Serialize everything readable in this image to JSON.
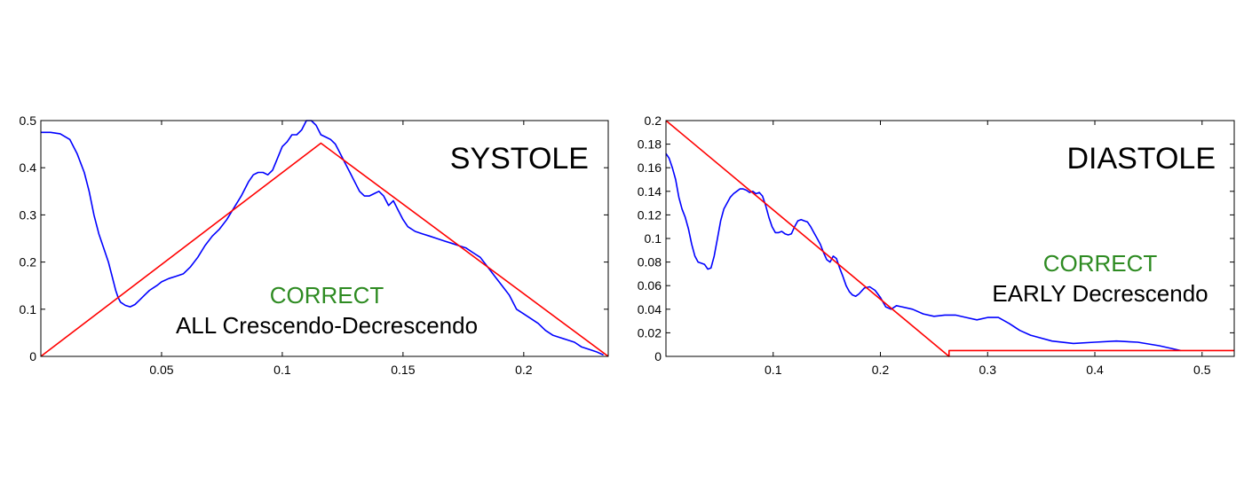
{
  "chart_data": [
    {
      "type": "line",
      "panel": "systole",
      "title": "SYSTOLE",
      "status": "CORRECT",
      "classification": "ALL Crescendo-Decrescendo",
      "xlim": [
        0,
        0.235
      ],
      "ylim": [
        0,
        0.5
      ],
      "xticks": [
        {
          "v": 0.05,
          "label": "0.05"
        },
        {
          "v": 0.1,
          "label": "0.1"
        },
        {
          "v": 0.15,
          "label": "0.15"
        },
        {
          "v": 0.2,
          "label": "0.2"
        }
      ],
      "yticks": [
        {
          "v": 0,
          "label": "0"
        },
        {
          "v": 0.1,
          "label": "0.1"
        },
        {
          "v": 0.2,
          "label": "0.2"
        },
        {
          "v": 0.3,
          "label": "0.3"
        },
        {
          "v": 0.4,
          "label": "0.4"
        },
        {
          "v": 0.5,
          "label": "0.5"
        }
      ],
      "colors": {
        "signal": "#0000ff",
        "model": "#ff0000",
        "status": "#2e8b22"
      },
      "series": [
        {
          "key": "signal",
          "x": [
            0,
            0.004,
            0.008,
            0.012,
            0.015,
            0.018,
            0.02,
            0.022,
            0.024,
            0.026,
            0.028,
            0.03,
            0.031,
            0.032,
            0.033,
            0.035,
            0.037,
            0.039,
            0.041,
            0.043,
            0.045,
            0.048,
            0.05,
            0.053,
            0.056,
            0.059,
            0.062,
            0.065,
            0.068,
            0.071,
            0.074,
            0.077,
            0.08,
            0.083,
            0.086,
            0.088,
            0.09,
            0.092,
            0.094,
            0.096,
            0.098,
            0.1,
            0.102,
            0.104,
            0.106,
            0.108,
            0.11,
            0.112,
            0.114,
            0.116,
            0.118,
            0.12,
            0.122,
            0.124,
            0.126,
            0.128,
            0.13,
            0.132,
            0.134,
            0.136,
            0.138,
            0.14,
            0.142,
            0.144,
            0.146,
            0.148,
            0.15,
            0.152,
            0.155,
            0.158,
            0.161,
            0.164,
            0.167,
            0.17,
            0.173,
            0.176,
            0.179,
            0.182,
            0.185,
            0.188,
            0.191,
            0.194,
            0.197,
            0.2,
            0.203,
            0.206,
            0.209,
            0.212,
            0.215,
            0.218,
            0.221,
            0.224,
            0.227,
            0.23,
            0.233
          ],
          "y": [
            0.475,
            0.475,
            0.472,
            0.46,
            0.43,
            0.39,
            0.35,
            0.3,
            0.26,
            0.23,
            0.2,
            0.16,
            0.14,
            0.125,
            0.115,
            0.108,
            0.105,
            0.11,
            0.12,
            0.13,
            0.14,
            0.15,
            0.158,
            0.165,
            0.17,
            0.175,
            0.19,
            0.21,
            0.235,
            0.255,
            0.27,
            0.29,
            0.315,
            0.34,
            0.37,
            0.385,
            0.39,
            0.39,
            0.385,
            0.395,
            0.42,
            0.445,
            0.455,
            0.47,
            0.47,
            0.48,
            0.5,
            0.5,
            0.49,
            0.47,
            0.465,
            0.46,
            0.45,
            0.43,
            0.41,
            0.39,
            0.37,
            0.35,
            0.34,
            0.34,
            0.345,
            0.35,
            0.34,
            0.32,
            0.33,
            0.31,
            0.29,
            0.275,
            0.265,
            0.26,
            0.255,
            0.25,
            0.245,
            0.24,
            0.235,
            0.23,
            0.22,
            0.21,
            0.19,
            0.17,
            0.15,
            0.13,
            0.1,
            0.09,
            0.08,
            0.07,
            0.055,
            0.045,
            0.04,
            0.035,
            0.03,
            0.02,
            0.015,
            0.01,
            0.003
          ]
        },
        {
          "key": "model",
          "x": [
            0,
            0.116,
            0.235
          ],
          "y": [
            0,
            0.452,
            0
          ]
        }
      ]
    },
    {
      "type": "line",
      "panel": "diastole",
      "title": "DIASTOLE",
      "status": "CORRECT",
      "classification": "EARLY Decrescendo",
      "xlim": [
        0,
        0.53
      ],
      "ylim": [
        0,
        0.2
      ],
      "xticks": [
        {
          "v": 0.1,
          "label": "0.1"
        },
        {
          "v": 0.2,
          "label": "0.2"
        },
        {
          "v": 0.3,
          "label": "0.3"
        },
        {
          "v": 0.4,
          "label": "0.4"
        },
        {
          "v": 0.5,
          "label": "0.5"
        }
      ],
      "yticks": [
        {
          "v": 0,
          "label": "0"
        },
        {
          "v": 0.02,
          "label": "0.02"
        },
        {
          "v": 0.04,
          "label": "0.04"
        },
        {
          "v": 0.06,
          "label": "0.06"
        },
        {
          "v": 0.08,
          "label": "0.08"
        },
        {
          "v": 0.1,
          "label": "0.1"
        },
        {
          "v": 0.12,
          "label": "0.12"
        },
        {
          "v": 0.14,
          "label": "0.14"
        },
        {
          "v": 0.16,
          "label": "0.16"
        },
        {
          "v": 0.18,
          "label": "0.18"
        },
        {
          "v": 0.2,
          "label": "0.2"
        }
      ],
      "colors": {
        "signal": "#0000ff",
        "model": "#ff0000",
        "status": "#2e8b22"
      },
      "series": [
        {
          "key": "signal",
          "x": [
            0,
            0.003,
            0.006,
            0.009,
            0.012,
            0.015,
            0.018,
            0.021,
            0.024,
            0.027,
            0.03,
            0.033,
            0.036,
            0.039,
            0.042,
            0.045,
            0.048,
            0.051,
            0.054,
            0.057,
            0.06,
            0.063,
            0.066,
            0.069,
            0.072,
            0.075,
            0.078,
            0.081,
            0.084,
            0.087,
            0.09,
            0.093,
            0.096,
            0.099,
            0.102,
            0.105,
            0.108,
            0.111,
            0.114,
            0.117,
            0.12,
            0.123,
            0.126,
            0.129,
            0.132,
            0.135,
            0.138,
            0.141,
            0.144,
            0.147,
            0.15,
            0.153,
            0.156,
            0.159,
            0.162,
            0.165,
            0.168,
            0.171,
            0.174,
            0.177,
            0.18,
            0.185,
            0.19,
            0.195,
            0.2,
            0.205,
            0.21,
            0.215,
            0.22,
            0.23,
            0.24,
            0.25,
            0.26,
            0.27,
            0.28,
            0.29,
            0.3,
            0.31,
            0.32,
            0.33,
            0.34,
            0.36,
            0.38,
            0.4,
            0.42,
            0.44,
            0.46,
            0.48
          ],
          "y": [
            0.172,
            0.168,
            0.16,
            0.15,
            0.135,
            0.125,
            0.118,
            0.108,
            0.095,
            0.085,
            0.08,
            0.079,
            0.078,
            0.074,
            0.075,
            0.085,
            0.1,
            0.115,
            0.125,
            0.13,
            0.135,
            0.138,
            0.14,
            0.142,
            0.142,
            0.141,
            0.139,
            0.14,
            0.138,
            0.139,
            0.136,
            0.128,
            0.118,
            0.11,
            0.105,
            0.105,
            0.106,
            0.104,
            0.103,
            0.104,
            0.11,
            0.115,
            0.116,
            0.115,
            0.114,
            0.11,
            0.105,
            0.1,
            0.095,
            0.088,
            0.082,
            0.08,
            0.085,
            0.083,
            0.075,
            0.068,
            0.06,
            0.055,
            0.052,
            0.051,
            0.053,
            0.058,
            0.059,
            0.056,
            0.05,
            0.042,
            0.04,
            0.043,
            0.042,
            0.04,
            0.036,
            0.034,
            0.035,
            0.035,
            0.033,
            0.031,
            0.033,
            0.033,
            0.028,
            0.022,
            0.018,
            0.013,
            0.011,
            0.012,
            0.013,
            0.012,
            0.009,
            0.005
          ]
        },
        {
          "key": "model",
          "x": [
            0,
            0.264,
            0.264,
            0.53
          ],
          "y": [
            0.2,
            0,
            0.005,
            0.005
          ]
        }
      ]
    }
  ]
}
